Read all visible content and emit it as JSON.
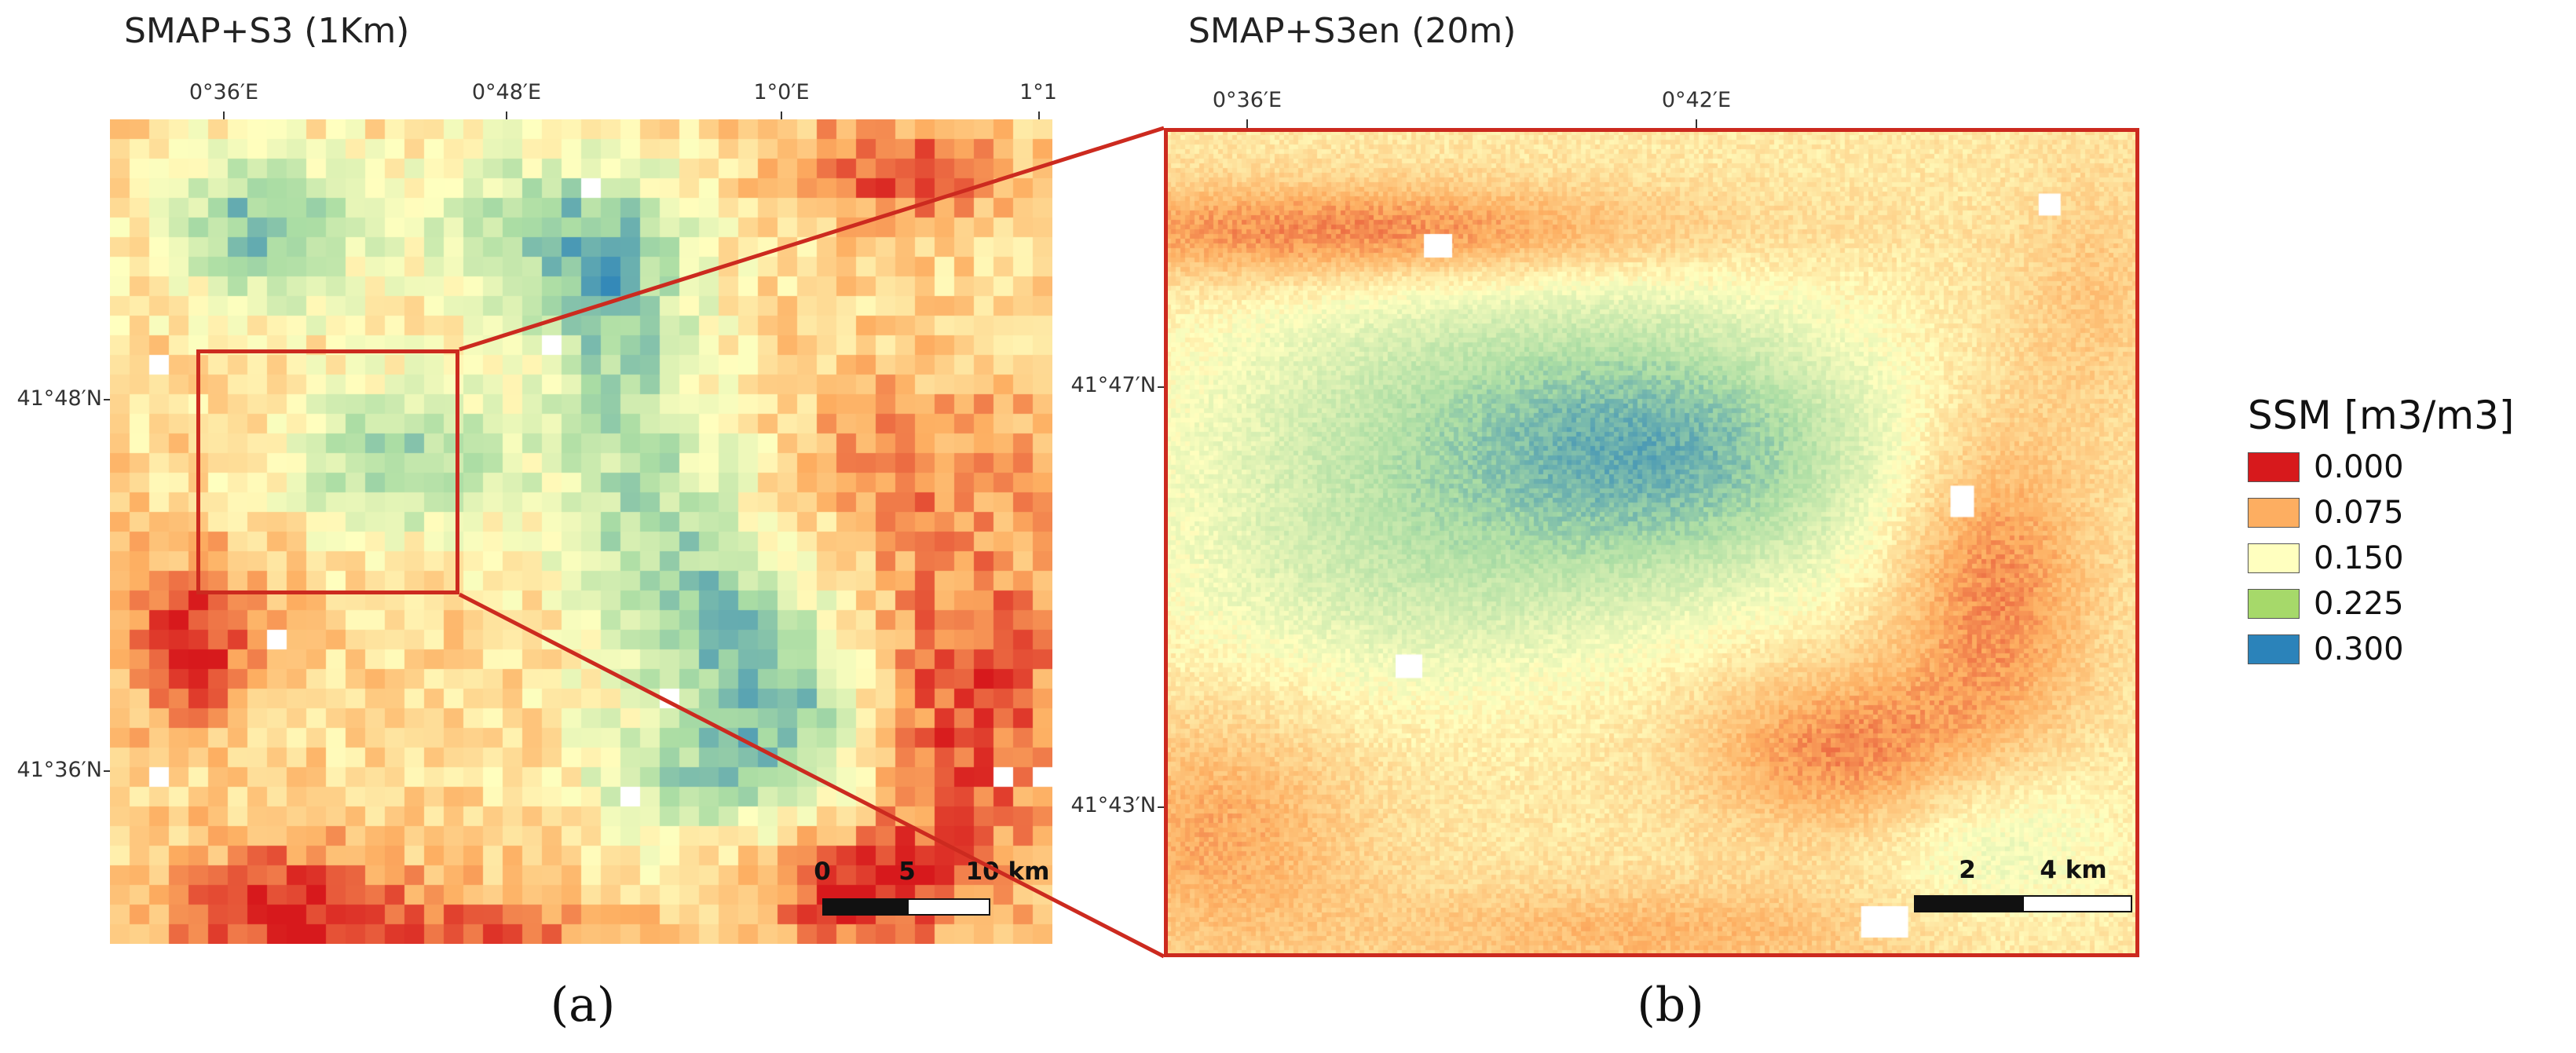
{
  "panel_a": {
    "title": "SMAP+S3 (1Km)",
    "lon_ticks": [
      "0°36′E",
      "0°48′E",
      "1°0′E",
      "1°1"
    ],
    "lat_ticks": [
      "41°48′N",
      "41°36′N"
    ],
    "scalebar": {
      "labels": [
        "0",
        "5",
        "10 km"
      ]
    },
    "sublabel": "(a)"
  },
  "panel_b": {
    "title": "SMAP+S3en (20m)",
    "lon_ticks": [
      "0°36′E",
      "0°42′E"
    ],
    "lat_ticks": [
      "41°47′N",
      "41°43′N"
    ],
    "scalebar": {
      "labels": [
        "2",
        "4 km"
      ]
    },
    "sublabel": "(b)"
  },
  "legend": {
    "title": "SSM [m3/m3]",
    "items": [
      {
        "label": "0.000",
        "color": "#d7191c"
      },
      {
        "label": "0.075",
        "color": "#fdae61"
      },
      {
        "label": "0.150",
        "color": "#ffffbf"
      },
      {
        "label": "0.225",
        "color": "#a6d96a"
      },
      {
        "label": "0.300",
        "color": "#2b83ba"
      }
    ]
  },
  "colors": {
    "zoom_box": "#cc2a1f",
    "ramp": [
      "#d7191c",
      "#fdae61",
      "#ffffbf",
      "#abdda4",
      "#2b83ba"
    ]
  }
}
